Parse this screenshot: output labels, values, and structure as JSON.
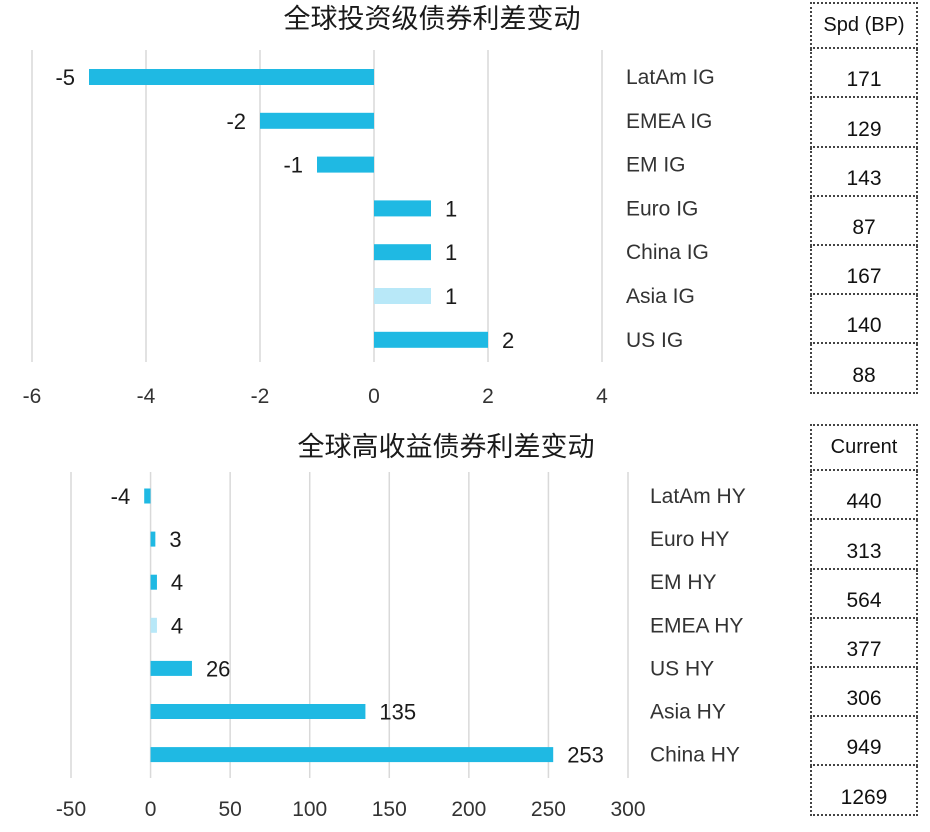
{
  "colors": {
    "bar": "#1fb9e3",
    "bar_light": "#b8e8f8",
    "grid": "#d9d9d9",
    "text": "#1a1a1a"
  },
  "chart_data": [
    {
      "type": "bar",
      "orientation": "horizontal",
      "title": "全球投资级债券利差变动",
      "categories": [
        "LatAm IG",
        "EMEA IG",
        "EM IG",
        "Euro IG",
        "China IG",
        "Asia IG",
        "US IG"
      ],
      "values": [
        -5,
        -2,
        -1,
        1,
        1,
        1,
        2
      ],
      "highlight": [
        "normal",
        "normal",
        "normal",
        "normal",
        "normal",
        "light",
        "normal"
      ],
      "xlim": [
        -6,
        4
      ],
      "xticks": [
        "-6",
        "-4",
        "-2",
        "0",
        "2",
        "4"
      ],
      "grid": true,
      "table": {
        "header": "Spd (BP)",
        "values": [
          "171",
          "129",
          "143",
          "87",
          "167",
          "140",
          "88"
        ]
      }
    },
    {
      "type": "bar",
      "orientation": "horizontal",
      "title": "全球高收益债券利差变动",
      "categories": [
        "LatAm HY",
        "Euro HY",
        "EM HY",
        "EMEA HY",
        "US HY",
        "Asia HY",
        "China HY"
      ],
      "values": [
        -4,
        3,
        4,
        4,
        26,
        135,
        253
      ],
      "highlight": [
        "normal",
        "normal",
        "normal",
        "light",
        "normal",
        "normal",
        "normal"
      ],
      "xlim": [
        -50,
        300
      ],
      "xticks": [
        "-50",
        "0",
        "50",
        "100",
        "150",
        "200",
        "250",
        "300"
      ],
      "grid": true,
      "table": {
        "header": "Current",
        "values": [
          "440",
          "313",
          "564",
          "377",
          "306",
          "949",
          "1269"
        ]
      }
    }
  ]
}
